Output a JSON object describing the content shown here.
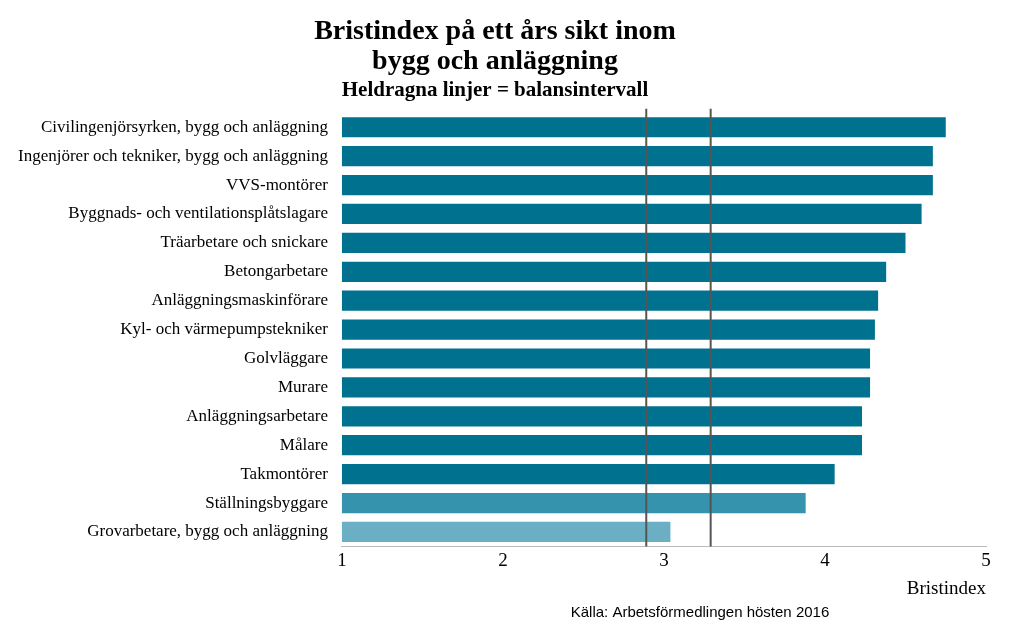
{
  "chart_data": {
    "type": "bar",
    "orientation": "horizontal",
    "title": [
      "Bristindex på ett års sikt inom",
      "bygg och anläggning"
    ],
    "subtitle": "Heldragna linjer = balansintervall",
    "x_label": "Bristindex",
    "source": "Källa: Arbetsförmedlingen hösten 2016",
    "categories": [
      "Civilingenjörsyrken, bygg och anläggning",
      "Ingenjörer och tekniker, bygg och anläggning",
      "VVS-montörer",
      "Byggnads- och ventilationsplåtslagare",
      "Träarbetare och snickare",
      "Betongarbetare",
      "Anläggningsmaskinförare",
      "Kyl- och värmepumpstekniker",
      "Golvläggare",
      "Murare",
      "Anläggningsarbetare",
      "Målare",
      "Takmontörer",
      "Ställningsbyggare",
      "Grovarbetare, bygg och anläggning"
    ],
    "values": [
      4.75,
      4.67,
      4.67,
      4.6,
      4.5,
      4.38,
      4.33,
      4.31,
      4.28,
      4.28,
      4.23,
      4.23,
      4.06,
      3.88,
      3.04
    ],
    "colors": [
      "#00728f",
      "#00728f",
      "#00728f",
      "#00728f",
      "#00728f",
      "#00728f",
      "#00728f",
      "#00728f",
      "#00728f",
      "#00728f",
      "#00728f",
      "#00728f",
      "#00728f",
      "#3593ae",
      "#6aafc4"
    ],
    "xlim": [
      1,
      5
    ],
    "xticks": [
      1,
      2,
      3,
      4,
      5
    ],
    "balance_interval": [
      2.89,
      3.29
    ],
    "grid": false
  }
}
